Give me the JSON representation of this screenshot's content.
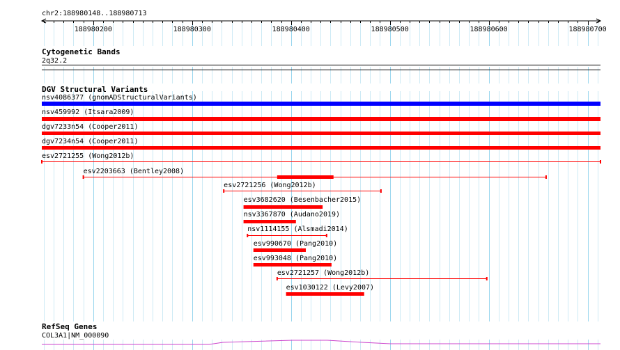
{
  "location": "chr2:188980148..188980713",
  "ruler": {
    "ticks": [
      "188980200",
      "188980300",
      "188980400",
      "188980500",
      "188980600",
      "188980700"
    ]
  },
  "tracks": {
    "cytoband": {
      "title": "Cytogenetic Bands",
      "band": "2q32.2"
    },
    "dgv": {
      "title": "DGV Structural Variants",
      "features": [
        {
          "label": "nsv4086377 (gnomADStructuralVariants)",
          "start": 188980148,
          "end": 188980713,
          "style": "thick",
          "color": "#0000ff"
        },
        {
          "label": "nsv459992 (Itsara2009)",
          "start": 188980148,
          "end": 188980713,
          "style": "thick",
          "color": "#ff0000"
        },
        {
          "label": "dgv7233n54 (Cooper2011)",
          "start": 188980148,
          "end": 188980713,
          "style": "thick",
          "color": "#ff0000"
        },
        {
          "label": "dgv7234n54 (Cooper2011)",
          "start": 188980148,
          "end": 188980713,
          "style": "thick",
          "color": "#ff0000"
        },
        {
          "label": "esv2721255 (Wong2012b)",
          "start": 188980148,
          "end": 188980713,
          "style": "line",
          "color": "#ff0000"
        },
        {
          "label": "esv2203663 (Bentley2008)",
          "start": 188980190,
          "end": 188980658,
          "style": "line",
          "color": "#ff0000",
          "inner_start": 188980386,
          "inner_end": 188980443
        },
        {
          "label": "esv2721256 (Wong2012b)",
          "start": 188980332,
          "end": 188980491,
          "style": "line",
          "color": "#ff0000"
        },
        {
          "label": "esv3682620 (Besenbacher2015)",
          "start": 188980352,
          "end": 188980432,
          "style": "thick",
          "color": "#ff0000"
        },
        {
          "label": "nsv3367870 (Audano2019)",
          "start": 188980352,
          "end": 188980405,
          "style": "thick",
          "color": "#ff0000"
        },
        {
          "label": "nsv1114155 (Alsmadi2014)",
          "start": 188980356,
          "end": 188980436,
          "style": "line",
          "color": "#ff0000"
        },
        {
          "label": "esv990670 (Pang2010)",
          "start": 188980362,
          "end": 188980415,
          "style": "thick",
          "color": "#ff0000"
        },
        {
          "label": "esv993048 (Pang2010)",
          "start": 188980362,
          "end": 188980441,
          "style": "thick",
          "color": "#ff0000"
        },
        {
          "label": "esv2721257 (Wong2012b)",
          "start": 188980386,
          "end": 188980598,
          "style": "line",
          "color": "#ff0000"
        },
        {
          "label": "esv1030122 (Levy2007)",
          "start": 188980395,
          "end": 188980474,
          "style": "thick",
          "color": "#ff0000"
        }
      ]
    },
    "refseq": {
      "title": "RefSeq Genes",
      "gene": "COL3A1|NM_000090",
      "color": "#cc44cc"
    }
  }
}
